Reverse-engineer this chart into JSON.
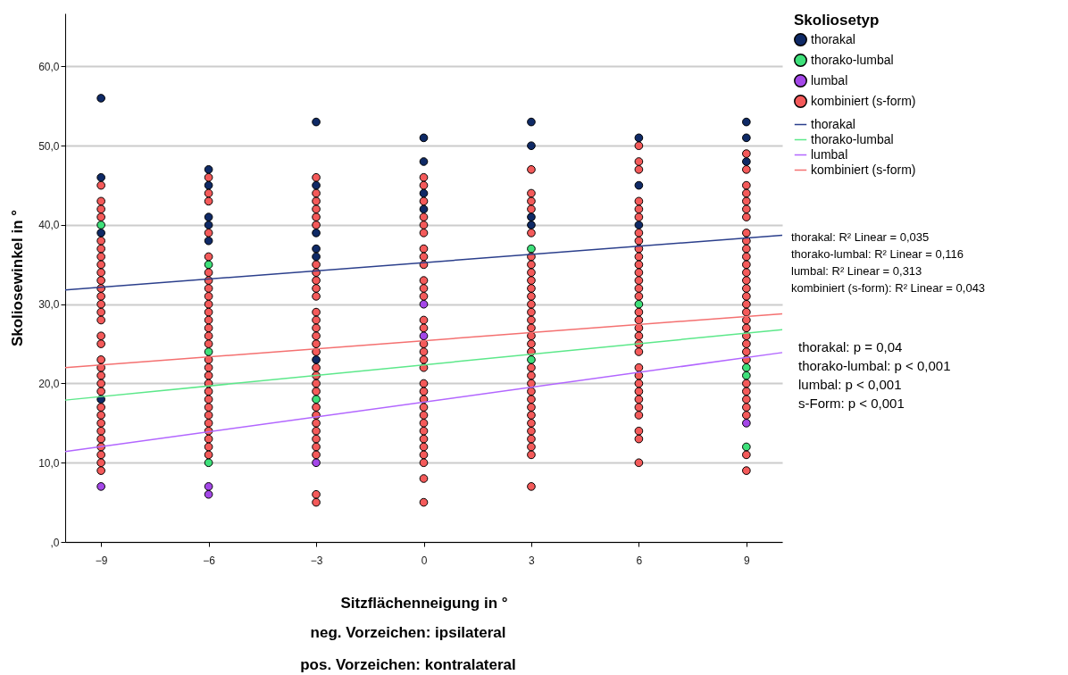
{
  "chart_data": {
    "type": "scatter",
    "xlabel": "Sitzflächenneigung in °",
    "ylabel": "Skoliosewinkel in °",
    "legend_title": "Skoliosetyp",
    "xlim": [
      -10,
      10
    ],
    "xticks": [
      -9,
      -6,
      -3,
      0,
      3,
      6,
      9
    ],
    "ylim": [
      0,
      66.7
    ],
    "yticks": [
      {
        "value": 0,
        "label": ",0"
      },
      {
        "value": 10,
        "label": "10,0"
      },
      {
        "value": 20,
        "label": "20,0"
      },
      {
        "value": 30,
        "label": "30,0"
      },
      {
        "value": 40,
        "label": "40,0"
      },
      {
        "value": 50,
        "label": "50,0"
      },
      {
        "value": 60,
        "label": "60,0"
      }
    ],
    "grid": "y",
    "legend": "right",
    "series": [
      {
        "name": "thorakal",
        "marker": "circle",
        "color": "#0f2a66",
        "x": [
          -9,
          -9,
          -9,
          -9,
          -6,
          -6,
          -6,
          -6,
          -6,
          -3,
          -3,
          -3,
          -3,
          -3,
          -3,
          0,
          0,
          0,
          0,
          3,
          3,
          3,
          3,
          6,
          6,
          6,
          9,
          9,
          9
        ],
        "values": [
          56,
          46,
          39,
          18,
          47,
          45,
          41,
          40,
          38,
          53,
          45,
          39,
          37,
          36,
          23,
          51,
          48,
          44,
          42,
          53,
          50,
          41,
          40,
          51,
          45,
          40,
          53,
          51,
          48
        ]
      },
      {
        "name": "thorako-lumbal",
        "marker": "circle",
        "color": "#3ee07a",
        "x": [
          -9,
          -6,
          -6,
          -6,
          -3,
          3,
          3,
          6,
          9,
          9,
          9
        ],
        "values": [
          40,
          35,
          24,
          10,
          18,
          37,
          23,
          30,
          22,
          21,
          12
        ]
      },
      {
        "name": "lumbal",
        "marker": "circle",
        "color": "#a447e8",
        "x": [
          -9,
          -6,
          -6,
          -3,
          0,
          0,
          9
        ],
        "values": [
          7,
          7,
          6,
          10,
          30,
          26,
          15
        ]
      },
      {
        "name": "kombiniert (s-form)",
        "marker": "circle",
        "color": "#f45a5a",
        "x": [
          -9,
          -9,
          -9,
          -9,
          -9,
          -9,
          -9,
          -9,
          -9,
          -9,
          -9,
          -9,
          -9,
          -9,
          -9,
          -9,
          -9,
          -9,
          -9,
          -9,
          -9,
          -9,
          -9,
          -9,
          -9,
          -9,
          -9,
          -9,
          -9,
          -9,
          -9,
          -6,
          -6,
          -6,
          -6,
          -6,
          -6,
          -6,
          -6,
          -6,
          -6,
          -6,
          -6,
          -6,
          -6,
          -6,
          -6,
          -6,
          -6,
          -6,
          -6,
          -6,
          -6,
          -6,
          -6,
          -6,
          -6,
          -6,
          -6,
          -3,
          -3,
          -3,
          -3,
          -3,
          -3,
          -3,
          -3,
          -3,
          -3,
          -3,
          -3,
          -3,
          -3,
          -3,
          -3,
          -3,
          -3,
          -3,
          -3,
          -3,
          -3,
          -3,
          -3,
          -3,
          -3,
          -3,
          -3,
          -3,
          -3,
          0,
          0,
          0,
          0,
          0,
          0,
          0,
          0,
          0,
          0,
          0,
          0,
          0,
          0,
          0,
          0,
          0,
          0,
          0,
          0,
          0,
          0,
          0,
          0,
          0,
          0,
          0,
          0,
          0,
          0,
          0,
          3,
          3,
          3,
          3,
          3,
          3,
          3,
          3,
          3,
          3,
          3,
          3,
          3,
          3,
          3,
          3,
          3,
          3,
          3,
          3,
          3,
          3,
          3,
          3,
          3,
          3,
          3,
          3,
          3,
          3,
          3,
          6,
          6,
          6,
          6,
          6,
          6,
          6,
          6,
          6,
          6,
          6,
          6,
          6,
          6,
          6,
          6,
          6,
          6,
          6,
          6,
          6,
          6,
          6,
          6,
          6,
          6,
          6,
          6,
          6,
          6,
          6,
          9,
          9,
          9,
          9,
          9,
          9,
          9,
          9,
          9,
          9,
          9,
          9,
          9,
          9,
          9,
          9,
          9,
          9,
          9,
          9,
          9,
          9,
          9,
          9,
          9,
          9,
          9,
          9,
          9,
          9,
          9
        ],
        "values": [
          45,
          43,
          42,
          41,
          38,
          37,
          36,
          35,
          34,
          33,
          32,
          31,
          30,
          29,
          28,
          26,
          25,
          23,
          22,
          21,
          20,
          19,
          17,
          16,
          15,
          14,
          13,
          12,
          11,
          10,
          9,
          46,
          44,
          43,
          39,
          36,
          34,
          33,
          32,
          31,
          30,
          29,
          28,
          27,
          26,
          25,
          23,
          22,
          21,
          20,
          19,
          18,
          17,
          16,
          15,
          14,
          13,
          12,
          11,
          46,
          44,
          43,
          42,
          41,
          40,
          35,
          34,
          33,
          32,
          31,
          29,
          28,
          27,
          26,
          25,
          24,
          22,
          21,
          20,
          19,
          17,
          16,
          15,
          14,
          13,
          12,
          11,
          6,
          5,
          46,
          45,
          43,
          41,
          40,
          39,
          37,
          36,
          35,
          33,
          32,
          31,
          28,
          27,
          25,
          24,
          23,
          22,
          20,
          19,
          18,
          17,
          16,
          15,
          14,
          13,
          12,
          11,
          10,
          8,
          5,
          47,
          44,
          43,
          42,
          39,
          36,
          35,
          34,
          33,
          32,
          31,
          30,
          29,
          28,
          27,
          26,
          25,
          24,
          22,
          21,
          20,
          19,
          18,
          17,
          16,
          15,
          14,
          13,
          12,
          11,
          7,
          50,
          48,
          47,
          43,
          42,
          41,
          39,
          38,
          37,
          36,
          35,
          34,
          33,
          32,
          31,
          29,
          28,
          27,
          26,
          25,
          24,
          22,
          21,
          20,
          19,
          18,
          17,
          16,
          14,
          13,
          10,
          49,
          47,
          45,
          44,
          43,
          42,
          41,
          39,
          38,
          37,
          36,
          35,
          34,
          33,
          32,
          31,
          30,
          29,
          28,
          27,
          26,
          25,
          24,
          23,
          20,
          19,
          18,
          17,
          16,
          11,
          9
        ]
      },
      {
        "name": "thorakal",
        "type": "line",
        "marker": "none",
        "color": "#2b3f8c",
        "x": [
          -10,
          10
        ],
        "values": [
          31.8,
          38.7
        ]
      },
      {
        "name": "thorako-lumbal",
        "type": "line",
        "marker": "none",
        "color": "#5ce88a",
        "x": [
          -10,
          10
        ],
        "values": [
          17.9,
          26.8
        ]
      },
      {
        "name": "lumbal",
        "type": "line",
        "marker": "none",
        "color": "#b266ff",
        "x": [
          -10,
          10
        ],
        "values": [
          11.4,
          23.9
        ]
      },
      {
        "name": "kombiniert (s-form)",
        "type": "line",
        "marker": "none",
        "color": "#f47070",
        "x": [
          -10,
          10
        ],
        "values": [
          22.0,
          28.8
        ]
      }
    ],
    "annotations": [
      "thorakal: R² Linear = 0,035",
      "thorako-lumbal: R² Linear = 0,116",
      "lumbal: R² Linear = 0,313",
      "kombiniert (s-form): R² Linear = 0,043",
      "thorakal: p = 0,04",
      "thorako-lumbal: p < 0,001",
      "lumbal: p < 0,001",
      "s-Form: p < 0,001",
      "neg. Vorzeichen: ipsilateral",
      "pos. Vorzeichen: kontralateral"
    ]
  }
}
